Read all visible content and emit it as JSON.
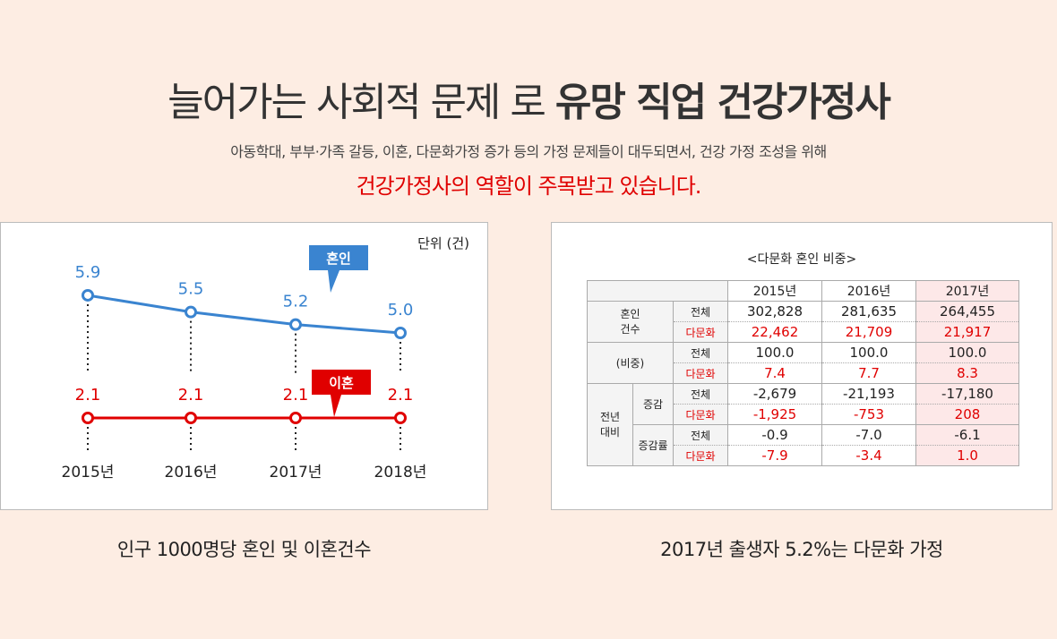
{
  "header": {
    "title_light": "늘어가는 사회적 문제 로",
    "title_bold": "유망 직업 건강가정사",
    "subtitle": "아동학대, 부부·가족 갈등, 이혼, 다문화가정 증가 등의 가정 문제들이 대두되면서, 건강 가정 조성을 위해",
    "highlight": "건강가정사의 역할이 주목받고 있습니다."
  },
  "chart_data": {
    "type": "line",
    "title": "인구 1000명당 혼인 및 이혼건수",
    "unit": "단위 (건)",
    "categories": [
      "2015년",
      "2016년",
      "2017년",
      "2018년"
    ],
    "series": [
      {
        "name": "혼인",
        "values": [
          5.9,
          5.5,
          5.2,
          5.0
        ],
        "color": "#3a84d0"
      },
      {
        "name": "이혼",
        "values": [
          2.1,
          2.1,
          2.1,
          2.1
        ],
        "color": "#e00000"
      }
    ]
  },
  "table": {
    "title": "<다문화 혼인 비중>",
    "caption": "2017년 출생자 5.2%는 다문화 가정",
    "years": [
      "2015년",
      "2016년",
      "2017년"
    ],
    "groups": [
      {
        "label": "혼인\n건수",
        "rows": [
          {
            "k": "전체",
            "v": [
              "302,828",
              "281,635",
              "264,455"
            ]
          },
          {
            "k": "다문화",
            "v": [
              "22,462",
              "21,709",
              "21,917"
            ]
          }
        ]
      },
      {
        "label": "(비중)",
        "rows": [
          {
            "k": "전체",
            "v": [
              "100.0",
              "100.0",
              "100.0"
            ]
          },
          {
            "k": "다문화",
            "v": [
              "7.4",
              "7.7",
              "8.3"
            ]
          }
        ]
      },
      {
        "label": "전년\n대비",
        "sub": "증감",
        "rows": [
          {
            "k": "전체",
            "v": [
              "-2,679",
              "-21,193",
              "-17,180"
            ]
          },
          {
            "k": "다문화",
            "v": [
              "-1,925",
              "-753",
              "208"
            ]
          }
        ]
      },
      {
        "sub": "증감률",
        "rows": [
          {
            "k": "전체",
            "v": [
              "-0.9",
              "-7.0",
              "-6.1"
            ]
          },
          {
            "k": "다문화",
            "v": [
              "-7.9",
              "-3.4",
              "1.0"
            ]
          }
        ]
      }
    ]
  }
}
